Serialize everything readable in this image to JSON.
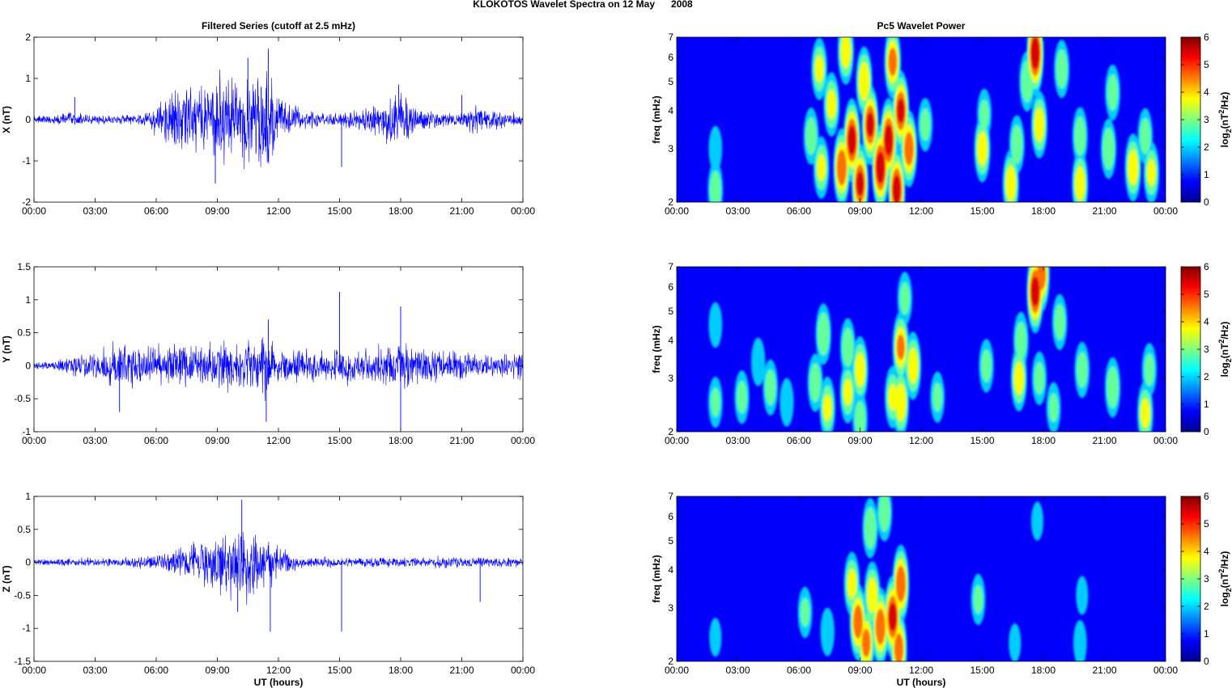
{
  "figure": {
    "suptitle": "KLOKOTOS Wavelet Spectra on 12 May      2008"
  },
  "chart_data": [
    {
      "type": "line",
      "title": "Filtered Series (cutoff at 2.5 mHz)",
      "xlabel": "",
      "ylabel": "X (nT)",
      "xlim": [
        0,
        24
      ],
      "ylim": [
        -2,
        2
      ],
      "xticks": [
        0,
        3,
        6,
        9,
        12,
        15,
        18,
        21,
        24
      ],
      "xtick_labels": [
        "00:00",
        "03:00",
        "06:00",
        "09:00",
        "12:00",
        "15:00",
        "18:00",
        "21:00",
        "00:00"
      ],
      "yticks": [
        -2,
        -1,
        0,
        1,
        2
      ],
      "ytick_labels": [
        "-2",
        "-1",
        "0",
        "1",
        "2"
      ],
      "series_color": "#0000ff",
      "envelope": {
        "t": [
          0,
          1,
          2,
          3,
          4,
          5,
          5.5,
          6,
          6.5,
          7,
          7.5,
          8,
          8.5,
          9,
          9.5,
          10,
          10.5,
          11,
          11.5,
          12,
          12.5,
          13,
          14,
          15,
          16,
          17,
          17.5,
          18,
          18.5,
          19,
          20,
          21,
          21.5,
          22,
          22.5,
          23,
          24
        ],
        "amp": [
          0.12,
          0.12,
          0.22,
          0.15,
          0.12,
          0.18,
          0.3,
          0.45,
          0.75,
          0.95,
          1.1,
          1.0,
          1.2,
          1.35,
          1.3,
          1.25,
          1.3,
          1.5,
          1.6,
          0.85,
          0.5,
          0.3,
          0.22,
          0.2,
          0.3,
          0.5,
          0.7,
          0.9,
          0.6,
          0.35,
          0.2,
          0.22,
          0.4,
          0.35,
          0.3,
          0.28,
          0.22
        ]
      },
      "peaks": [
        {
          "t": 11.5,
          "y": 1.72
        },
        {
          "t": 10.5,
          "y": 1.5
        },
        {
          "t": 8.9,
          "y": -1.55
        },
        {
          "t": 15.1,
          "y": -1.15
        },
        {
          "t": 17.9,
          "y": 0.85
        },
        {
          "t": 2.0,
          "y": 0.55
        },
        {
          "t": 21.0,
          "y": 0.6
        }
      ]
    },
    {
      "type": "line",
      "title": "",
      "xlabel": "",
      "ylabel": "Y (nT)",
      "xlim": [
        0,
        24
      ],
      "ylim": [
        -1,
        1.5
      ],
      "xticks": [
        0,
        3,
        6,
        9,
        12,
        15,
        18,
        21,
        24
      ],
      "xtick_labels": [
        "00:00",
        "03:00",
        "06:00",
        "09:00",
        "12:00",
        "15:00",
        "18:00",
        "21:00",
        "00:00"
      ],
      "yticks": [
        -1,
        -0.5,
        0,
        0.5,
        1,
        1.5
      ],
      "ytick_labels": [
        "-1",
        "-0.5",
        "0",
        "0.5",
        "1",
        "1.5"
      ],
      "series_color": "#0000ff",
      "envelope": {
        "t": [
          0,
          1,
          2,
          3,
          4,
          5,
          6,
          7,
          8,
          9,
          10,
          11,
          11.5,
          12,
          13,
          14,
          15,
          16,
          17,
          18,
          19,
          20,
          21,
          22,
          23,
          24
        ],
        "amp": [
          0.08,
          0.1,
          0.25,
          0.3,
          0.45,
          0.35,
          0.35,
          0.4,
          0.35,
          0.45,
          0.45,
          0.5,
          0.7,
          0.35,
          0.3,
          0.3,
          0.35,
          0.3,
          0.4,
          0.5,
          0.35,
          0.3,
          0.25,
          0.2,
          0.2,
          0.3
        ]
      },
      "peaks": [
        {
          "t": 15.0,
          "y": 1.12
        },
        {
          "t": 18.0,
          "y": 0.9
        },
        {
          "t": 11.5,
          "y": 0.7
        },
        {
          "t": 18.0,
          "y": -0.98
        },
        {
          "t": 11.4,
          "y": -0.85
        },
        {
          "t": 4.2,
          "y": -0.7
        }
      ]
    },
    {
      "type": "line",
      "title": "",
      "xlabel": "UT (hours)",
      "ylabel": "Z (nT)",
      "xlim": [
        0,
        24
      ],
      "ylim": [
        -1.5,
        1
      ],
      "xticks": [
        0,
        3,
        6,
        9,
        12,
        15,
        18,
        21,
        24
      ],
      "xtick_labels": [
        "00:00",
        "03:00",
        "06:00",
        "09:00",
        "12:00",
        "15:00",
        "18:00",
        "21:00",
        "00:00"
      ],
      "yticks": [
        -1.5,
        -1,
        -0.5,
        0,
        0.5,
        1
      ],
      "ytick_labels": [
        "-1.5",
        "-1",
        "-0.5",
        "0",
        "0.5",
        "1"
      ],
      "series_color": "#0000ff",
      "envelope": {
        "t": [
          0,
          2,
          3,
          5,
          6,
          7,
          8,
          8.5,
          9,
          9.5,
          10,
          10.5,
          11,
          11.5,
          12,
          13,
          14,
          15,
          16,
          18,
          20,
          22,
          24
        ],
        "amp": [
          0.06,
          0.08,
          0.08,
          0.1,
          0.15,
          0.25,
          0.35,
          0.45,
          0.5,
          0.6,
          0.65,
          0.7,
          0.6,
          0.5,
          0.3,
          0.12,
          0.1,
          0.1,
          0.1,
          0.1,
          0.1,
          0.1,
          0.08
        ]
      },
      "peaks": [
        {
          "t": 10.2,
          "y": 0.95
        },
        {
          "t": 11.6,
          "y": -1.05
        },
        {
          "t": 15.1,
          "y": -1.05
        },
        {
          "t": 10.0,
          "y": -0.75
        },
        {
          "t": 21.9,
          "y": -0.6
        }
      ]
    },
    {
      "type": "heatmap",
      "title": "Pc5 Wavelet Power",
      "xlabel": "",
      "ylabel": "freq (mHz)",
      "xlim": [
        0,
        24
      ],
      "ylim": [
        2,
        7
      ],
      "yscale": "log",
      "xticks": [
        0,
        3,
        6,
        9,
        12,
        15,
        18,
        21,
        24
      ],
      "xtick_labels": [
        "00:00",
        "03:00",
        "06:00",
        "09:00",
        "12:00",
        "15:00",
        "18:00",
        "21:00",
        "00:00"
      ],
      "yticks": [
        2,
        3,
        4,
        5,
        6,
        7
      ],
      "ytick_labels": [
        "2",
        "3",
        "4",
        "5",
        "6",
        "7"
      ],
      "colorbar": {
        "label": "log2(nT2/Hz)",
        "range": [
          0,
          6
        ],
        "ticks": [
          "0",
          "1",
          "2",
          "3",
          "4",
          "5",
          "6"
        ]
      },
      "colormap": "jet",
      "blobs": [
        {
          "t": 1.9,
          "f": 2.2,
          "p": 2.5
        },
        {
          "t": 1.9,
          "f": 3.0,
          "p": 1.6
        },
        {
          "t": 6.6,
          "f": 3.3,
          "p": 2.5
        },
        {
          "t": 7.1,
          "f": 2.6,
          "p": 3.0
        },
        {
          "t": 7.6,
          "f": 4.2,
          "p": 3.2
        },
        {
          "t": 7.0,
          "f": 5.5,
          "p": 3.0
        },
        {
          "t": 8.1,
          "f": 2.6,
          "p": 4.8
        },
        {
          "t": 8.6,
          "f": 3.2,
          "p": 5.4
        },
        {
          "t": 9.0,
          "f": 2.3,
          "p": 5.0
        },
        {
          "t": 9.5,
          "f": 3.6,
          "p": 5.0
        },
        {
          "t": 9.2,
          "f": 5.0,
          "p": 3.8
        },
        {
          "t": 10.0,
          "f": 2.6,
          "p": 5.6
        },
        {
          "t": 10.4,
          "f": 3.2,
          "p": 5.5
        },
        {
          "t": 10.8,
          "f": 2.2,
          "p": 5.3
        },
        {
          "t": 11.0,
          "f": 4.0,
          "p": 5.0
        },
        {
          "t": 10.6,
          "f": 5.8,
          "p": 4.2
        },
        {
          "t": 11.4,
          "f": 3.0,
          "p": 4.6
        },
        {
          "t": 8.3,
          "f": 6.3,
          "p": 3.5
        },
        {
          "t": 12.2,
          "f": 3.6,
          "p": 2.2
        },
        {
          "t": 15.0,
          "f": 3.0,
          "p": 3.5
        },
        {
          "t": 15.1,
          "f": 3.9,
          "p": 2.0
        },
        {
          "t": 16.4,
          "f": 2.3,
          "p": 3.6
        },
        {
          "t": 16.7,
          "f": 3.1,
          "p": 2.6
        },
        {
          "t": 17.6,
          "f": 6.2,
          "p": 5.6
        },
        {
          "t": 17.8,
          "f": 3.6,
          "p": 3.5
        },
        {
          "t": 17.2,
          "f": 5.0,
          "p": 2.8
        },
        {
          "t": 18.9,
          "f": 5.5,
          "p": 2.6
        },
        {
          "t": 19.8,
          "f": 2.3,
          "p": 3.5
        },
        {
          "t": 19.8,
          "f": 3.3,
          "p": 2.6
        },
        {
          "t": 21.2,
          "f": 3.0,
          "p": 2.8
        },
        {
          "t": 21.4,
          "f": 4.6,
          "p": 2.4
        },
        {
          "t": 22.4,
          "f": 2.6,
          "p": 3.6
        },
        {
          "t": 23.3,
          "f": 2.5,
          "p": 3.0
        },
        {
          "t": 23.0,
          "f": 3.3,
          "p": 2.4
        }
      ]
    },
    {
      "type": "heatmap",
      "title": "",
      "xlabel": "",
      "ylabel": "freq (mHz)",
      "xlim": [
        0,
        24
      ],
      "ylim": [
        2,
        7
      ],
      "yscale": "log",
      "xticks": [
        0,
        3,
        6,
        9,
        12,
        15,
        18,
        21,
        24
      ],
      "xtick_labels": [
        "00:00",
        "03:00",
        "06:00",
        "09:00",
        "12:00",
        "15:00",
        "18:00",
        "21:00",
        "00:00"
      ],
      "yticks": [
        2,
        3,
        4,
        5,
        6,
        7
      ],
      "ytick_labels": [
        "2",
        "3",
        "4",
        "5",
        "6",
        "7"
      ],
      "colorbar": {
        "label": "log2(nT2/Hz)",
        "range": [
          0,
          6
        ],
        "ticks": [
          "0",
          "1",
          "2",
          "3",
          "4",
          "5",
          "6"
        ]
      },
      "colormap": "jet",
      "blobs": [
        {
          "t": 1.9,
          "f": 2.5,
          "p": 2.0
        },
        {
          "t": 1.9,
          "f": 4.5,
          "p": 1.6
        },
        {
          "t": 3.2,
          "f": 2.6,
          "p": 2.2
        },
        {
          "t": 4.0,
          "f": 3.4,
          "p": 1.8
        },
        {
          "t": 4.6,
          "f": 2.8,
          "p": 2.4
        },
        {
          "t": 5.4,
          "f": 2.5,
          "p": 1.8
        },
        {
          "t": 6.8,
          "f": 2.9,
          "p": 2.6
        },
        {
          "t": 7.2,
          "f": 4.2,
          "p": 2.9
        },
        {
          "t": 7.4,
          "f": 2.4,
          "p": 3.0
        },
        {
          "t": 8.4,
          "f": 3.8,
          "p": 2.6
        },
        {
          "t": 8.4,
          "f": 2.7,
          "p": 3.0
        },
        {
          "t": 9.0,
          "f": 3.2,
          "p": 3.5
        },
        {
          "t": 9.0,
          "f": 2.2,
          "p": 2.4
        },
        {
          "t": 10.6,
          "f": 2.6,
          "p": 3.0
        },
        {
          "t": 11.0,
          "f": 3.8,
          "p": 4.0
        },
        {
          "t": 11.0,
          "f": 2.5,
          "p": 3.8
        },
        {
          "t": 11.6,
          "f": 3.3,
          "p": 3.6
        },
        {
          "t": 11.2,
          "f": 5.5,
          "p": 2.2
        },
        {
          "t": 12.8,
          "f": 2.6,
          "p": 2.0
        },
        {
          "t": 15.2,
          "f": 3.3,
          "p": 2.2
        },
        {
          "t": 16.8,
          "f": 3.0,
          "p": 3.4
        },
        {
          "t": 16.9,
          "f": 4.0,
          "p": 2.5
        },
        {
          "t": 17.6,
          "f": 5.8,
          "p": 5.4
        },
        {
          "t": 17.9,
          "f": 6.6,
          "p": 4.4
        },
        {
          "t": 17.8,
          "f": 3.0,
          "p": 2.2
        },
        {
          "t": 18.5,
          "f": 2.4,
          "p": 2.0
        },
        {
          "t": 18.8,
          "f": 4.6,
          "p": 2.4
        },
        {
          "t": 19.9,
          "f": 3.2,
          "p": 2.4
        },
        {
          "t": 21.4,
          "f": 2.8,
          "p": 2.8
        },
        {
          "t": 23.0,
          "f": 2.3,
          "p": 3.2
        },
        {
          "t": 23.2,
          "f": 3.2,
          "p": 2.2
        }
      ]
    },
    {
      "type": "heatmap",
      "title": "",
      "xlabel": "UT (hours)",
      "ylabel": "freq (mHz)",
      "xlim": [
        0,
        24
      ],
      "ylim": [
        2,
        7
      ],
      "yscale": "log",
      "xticks": [
        0,
        3,
        6,
        9,
        12,
        15,
        18,
        21,
        24
      ],
      "xtick_labels": [
        "00:00",
        "03:00",
        "06:00",
        "09:00",
        "12:00",
        "15:00",
        "18:00",
        "21:00",
        "00:00"
      ],
      "yticks": [
        2,
        3,
        4,
        5,
        6,
        7
      ],
      "ytick_labels": [
        "2",
        "3",
        "4",
        "5",
        "6",
        "7"
      ],
      "colorbar": {
        "label": "log2(nT2/Hz)",
        "range": [
          0,
          6
        ],
        "ticks": [
          "0",
          "1",
          "2",
          "3",
          "4",
          "5",
          "6"
        ]
      },
      "colormap": "jet",
      "blobs": [
        {
          "t": 1.9,
          "f": 2.4,
          "p": 1.2
        },
        {
          "t": 6.3,
          "f": 2.9,
          "p": 2.0
        },
        {
          "t": 7.4,
          "f": 2.5,
          "p": 1.8
        },
        {
          "t": 8.6,
          "f": 3.6,
          "p": 3.2
        },
        {
          "t": 8.9,
          "f": 2.7,
          "p": 4.6
        },
        {
          "t": 9.3,
          "f": 2.3,
          "p": 4.2
        },
        {
          "t": 9.6,
          "f": 3.3,
          "p": 3.6
        },
        {
          "t": 9.5,
          "f": 5.5,
          "p": 2.8
        },
        {
          "t": 10.0,
          "f": 2.6,
          "p": 4.8
        },
        {
          "t": 10.6,
          "f": 2.8,
          "p": 5.3
        },
        {
          "t": 11.0,
          "f": 3.6,
          "p": 4.8
        },
        {
          "t": 10.9,
          "f": 2.2,
          "p": 4.4
        },
        {
          "t": 10.2,
          "f": 6.2,
          "p": 2.6
        },
        {
          "t": 14.8,
          "f": 3.2,
          "p": 2.0
        },
        {
          "t": 16.6,
          "f": 2.3,
          "p": 1.2
        },
        {
          "t": 17.7,
          "f": 5.8,
          "p": 1.2
        },
        {
          "t": 19.8,
          "f": 2.3,
          "p": 1.6
        },
        {
          "t": 19.9,
          "f": 3.3,
          "p": 1.2
        }
      ]
    }
  ]
}
